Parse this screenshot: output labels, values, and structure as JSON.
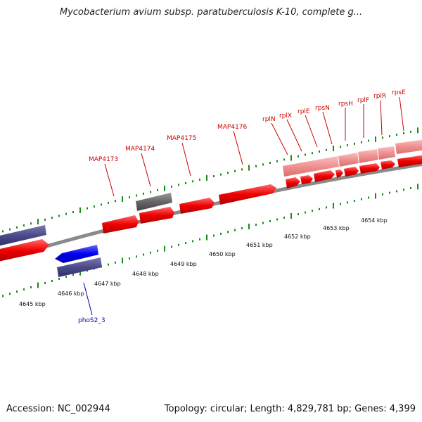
{
  "title": "Mycobacterium avium subsp. paratuberculosis K-10, complete g...",
  "footer": {
    "accession": "Accession: NC_002944",
    "summary": "Topology: circular; Length: 4,829,781 bp; Genes: 4,399"
  },
  "kbp_labels": [
    "4645 kbp",
    "4646 kbp",
    "4647 kbp",
    "4648 kbp",
    "4649 kbp",
    "4650 kbp",
    "4651 kbp",
    "4652 kbp",
    "4653 kbp",
    "4654 kbp"
  ],
  "gene_labels_top": [
    "MAP4173",
    "MAP4174",
    "MAP4175",
    "MAP4176",
    "rplN",
    "rplX",
    "rplE",
    "rpsN",
    "rpsH",
    "rplF",
    "rplR",
    "rpsE"
  ],
  "gene_labels_bottom": [
    "phoS2_3"
  ],
  "colors": {
    "forward_gene": "#ee0000",
    "reverse_gene": "#0000ee",
    "pale_gene": "#f09090",
    "navy_gene": "#4a4a8a",
    "gray_gene": "#666666",
    "tick": "#1a8a1a",
    "backbone": "#999999",
    "label_red": "#d00000",
    "label_blue": "#0000aa"
  }
}
